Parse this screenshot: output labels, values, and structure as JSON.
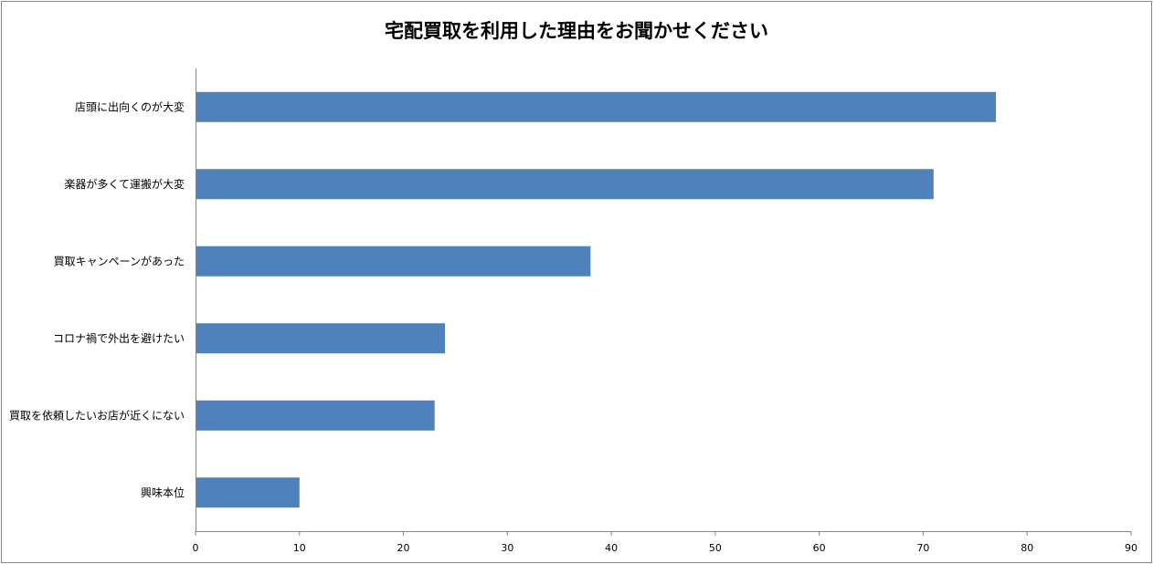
{
  "chart_data": {
    "type": "bar",
    "orientation": "horizontal",
    "title": "宅配買取を利用した理由をお聞かせください",
    "categories": [
      "店頭に出向くのが大変",
      "楽器が多くて運搬が大変",
      "買取キャンペーンがあった",
      "コロナ禍で外出を避けたい",
      "買取を依頼したいお店が近くにない",
      "興味本位"
    ],
    "values": [
      77,
      71,
      38,
      24,
      23,
      10
    ],
    "xlim": [
      0,
      90
    ],
    "xticks": [
      "0",
      "10",
      "20",
      "30",
      "40",
      "50",
      "60",
      "70",
      "80",
      "90"
    ],
    "grid": false,
    "legend": "none",
    "bar_color": "#4F81BD"
  }
}
